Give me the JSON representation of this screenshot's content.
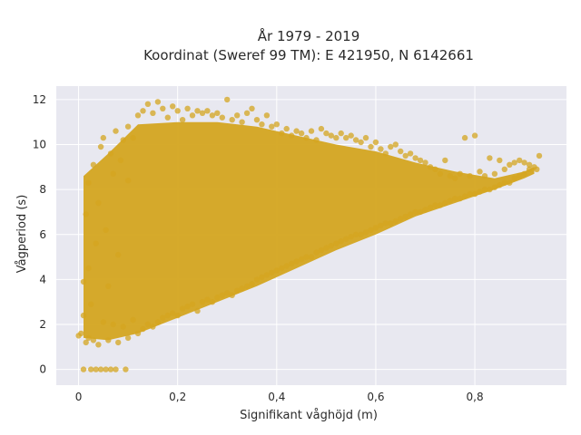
{
  "chart_data": {
    "type": "scatter",
    "title": [
      "År 1979 - 2019",
      "Koordinat (Sweref 99 TM): E 421950, N 6142661"
    ],
    "xlabel": "Signifikant våghöjd (m)",
    "ylabel": "Vågperiod (s)",
    "xlim": [
      -0.045,
      0.985
    ],
    "ylim": [
      -0.7,
      12.6
    ],
    "xticks": [
      0,
      0.2,
      0.4,
      0.6,
      0.8
    ],
    "xtick_labels": [
      "0",
      "0,2",
      "0,4",
      "0,6",
      "0,8"
    ],
    "yticks": [
      0,
      2,
      4,
      6,
      8,
      10,
      12
    ],
    "ytick_labels": [
      "0",
      "2",
      "4",
      "6",
      "8",
      "10",
      "12"
    ],
    "grid": true,
    "marker_color": "#D4A520",
    "plot_background": "#E8E8F0",
    "series": [
      {
        "points": [
          [
            0.0,
            1.5
          ],
          [
            0.005,
            1.6
          ],
          [
            0.01,
            2.4
          ],
          [
            0.01,
            3.9
          ],
          [
            0.01,
            0.0
          ],
          [
            0.015,
            1.2
          ],
          [
            0.015,
            6.9
          ],
          [
            0.02,
            1.4
          ],
          [
            0.02,
            4.5
          ],
          [
            0.02,
            8.3
          ],
          [
            0.025,
            0.0
          ],
          [
            0.025,
            2.9
          ],
          [
            0.03,
            1.3
          ],
          [
            0.03,
            9.1
          ],
          [
            0.035,
            0.0
          ],
          [
            0.035,
            5.6
          ],
          [
            0.04,
            1.1
          ],
          [
            0.04,
            7.4
          ],
          [
            0.045,
            0.0
          ],
          [
            0.045,
            9.9
          ],
          [
            0.05,
            2.1
          ],
          [
            0.05,
            10.3
          ],
          [
            0.055,
            0.0
          ],
          [
            0.055,
            6.2
          ],
          [
            0.06,
            1.3
          ],
          [
            0.06,
            3.7
          ],
          [
            0.065,
            0.0
          ],
          [
            0.065,
            9.6
          ],
          [
            0.07,
            2.0
          ],
          [
            0.07,
            8.7
          ],
          [
            0.075,
            0.0
          ],
          [
            0.075,
            10.6
          ],
          [
            0.08,
            1.2
          ],
          [
            0.08,
            5.1
          ],
          [
            0.085,
            9.3
          ],
          [
            0.09,
            1.9
          ],
          [
            0.09,
            10.2
          ],
          [
            0.095,
            0.0
          ],
          [
            0.1,
            1.4
          ],
          [
            0.1,
            10.8
          ],
          [
            0.1,
            8.4
          ],
          [
            0.11,
            2.2
          ],
          [
            0.11,
            10.3
          ],
          [
            0.12,
            1.6
          ],
          [
            0.12,
            11.3
          ],
          [
            0.13,
            1.8
          ],
          [
            0.13,
            11.5
          ],
          [
            0.14,
            2.0
          ],
          [
            0.14,
            11.8
          ],
          [
            0.15,
            1.9
          ],
          [
            0.15,
            11.4
          ],
          [
            0.16,
            2.1
          ],
          [
            0.16,
            11.9
          ],
          [
            0.17,
            2.3
          ],
          [
            0.17,
            11.6
          ],
          [
            0.18,
            2.4
          ],
          [
            0.18,
            11.2
          ],
          [
            0.19,
            2.5
          ],
          [
            0.19,
            11.7
          ],
          [
            0.2,
            2.4
          ],
          [
            0.2,
            11.5
          ],
          [
            0.21,
            2.7
          ],
          [
            0.21,
            11.1
          ],
          [
            0.22,
            2.8
          ],
          [
            0.22,
            11.6
          ],
          [
            0.23,
            2.9
          ],
          [
            0.23,
            11.3
          ],
          [
            0.24,
            2.6
          ],
          [
            0.24,
            11.5
          ],
          [
            0.25,
            3.0
          ],
          [
            0.25,
            11.4
          ],
          [
            0.26,
            3.1
          ],
          [
            0.26,
            11.5
          ],
          [
            0.27,
            3.0
          ],
          [
            0.27,
            11.3
          ],
          [
            0.28,
            3.2
          ],
          [
            0.28,
            11.4
          ],
          [
            0.29,
            3.3
          ],
          [
            0.29,
            11.2
          ],
          [
            0.3,
            3.4
          ],
          [
            0.3,
            12.0
          ],
          [
            0.31,
            3.3
          ],
          [
            0.31,
            11.1
          ],
          [
            0.32,
            3.5
          ],
          [
            0.32,
            11.3
          ],
          [
            0.33,
            3.6
          ],
          [
            0.33,
            11.0
          ],
          [
            0.34,
            3.7
          ],
          [
            0.34,
            11.4
          ],
          [
            0.35,
            3.8
          ],
          [
            0.35,
            11.6
          ],
          [
            0.36,
            4.0
          ],
          [
            0.36,
            11.1
          ],
          [
            0.37,
            4.1
          ],
          [
            0.37,
            10.9
          ],
          [
            0.38,
            4.2
          ],
          [
            0.38,
            11.3
          ],
          [
            0.39,
            4.3
          ],
          [
            0.39,
            10.8
          ],
          [
            0.4,
            4.4
          ],
          [
            0.4,
            10.9
          ],
          [
            0.41,
            4.5
          ],
          [
            0.41,
            10.5
          ],
          [
            0.42,
            4.6
          ],
          [
            0.42,
            10.7
          ],
          [
            0.43,
            4.7
          ],
          [
            0.43,
            10.4
          ],
          [
            0.44,
            4.8
          ],
          [
            0.44,
            10.6
          ],
          [
            0.45,
            4.9
          ],
          [
            0.45,
            10.5
          ],
          [
            0.46,
            5.0
          ],
          [
            0.46,
            10.3
          ],
          [
            0.47,
            5.0
          ],
          [
            0.47,
            10.6
          ],
          [
            0.48,
            5.2
          ],
          [
            0.48,
            10.2
          ],
          [
            0.49,
            5.3
          ],
          [
            0.49,
            10.7
          ],
          [
            0.5,
            5.4
          ],
          [
            0.5,
            10.5
          ],
          [
            0.51,
            5.5
          ],
          [
            0.51,
            10.4
          ],
          [
            0.52,
            5.6
          ],
          [
            0.52,
            10.3
          ],
          [
            0.53,
            5.7
          ],
          [
            0.53,
            10.5
          ],
          [
            0.54,
            5.8
          ],
          [
            0.54,
            10.3
          ],
          [
            0.55,
            5.9
          ],
          [
            0.55,
            10.4
          ],
          [
            0.56,
            6.0
          ],
          [
            0.56,
            10.2
          ],
          [
            0.57,
            6.0
          ],
          [
            0.57,
            10.1
          ],
          [
            0.58,
            6.1
          ],
          [
            0.58,
            10.3
          ],
          [
            0.59,
            6.2
          ],
          [
            0.59,
            9.9
          ],
          [
            0.6,
            6.3
          ],
          [
            0.6,
            10.1
          ],
          [
            0.61,
            6.4
          ],
          [
            0.61,
            9.8
          ],
          [
            0.62,
            6.5
          ],
          [
            0.62,
            9.6
          ],
          [
            0.63,
            6.5
          ],
          [
            0.63,
            9.9
          ],
          [
            0.64,
            6.6
          ],
          [
            0.64,
            10.0
          ],
          [
            0.65,
            6.7
          ],
          [
            0.65,
            9.7
          ],
          [
            0.66,
            6.8
          ],
          [
            0.66,
            9.5
          ],
          [
            0.67,
            6.9
          ],
          [
            0.67,
            9.6
          ],
          [
            0.68,
            7.0
          ],
          [
            0.68,
            9.4
          ],
          [
            0.69,
            7.0
          ],
          [
            0.69,
            9.3
          ],
          [
            0.7,
            7.1
          ],
          [
            0.7,
            9.2
          ],
          [
            0.71,
            7.2
          ],
          [
            0.71,
            9.0
          ],
          [
            0.72,
            7.3
          ],
          [
            0.72,
            8.9
          ],
          [
            0.73,
            7.3
          ],
          [
            0.73,
            8.7
          ],
          [
            0.74,
            7.4
          ],
          [
            0.74,
            9.3
          ],
          [
            0.75,
            7.5
          ],
          [
            0.75,
            8.6
          ],
          [
            0.76,
            7.6
          ],
          [
            0.76,
            8.5
          ],
          [
            0.77,
            7.6
          ],
          [
            0.77,
            8.7
          ],
          [
            0.78,
            7.7
          ],
          [
            0.78,
            10.3
          ],
          [
            0.79,
            7.8
          ],
          [
            0.79,
            8.6
          ],
          [
            0.8,
            7.8
          ],
          [
            0.8,
            10.4
          ],
          [
            0.81,
            7.9
          ],
          [
            0.81,
            8.8
          ],
          [
            0.82,
            8.0
          ],
          [
            0.82,
            8.6
          ],
          [
            0.83,
            8.0
          ],
          [
            0.83,
            9.4
          ],
          [
            0.84,
            8.1
          ],
          [
            0.84,
            8.7
          ],
          [
            0.85,
            8.2
          ],
          [
            0.85,
            9.3
          ],
          [
            0.86,
            8.3
          ],
          [
            0.86,
            8.9
          ],
          [
            0.87,
            8.3
          ],
          [
            0.87,
            9.1
          ],
          [
            0.88,
            8.5
          ],
          [
            0.88,
            9.2
          ],
          [
            0.89,
            8.6
          ],
          [
            0.89,
            9.3
          ],
          [
            0.9,
            8.7
          ],
          [
            0.9,
            9.2
          ],
          [
            0.91,
            8.9
          ],
          [
            0.91,
            9.1
          ],
          [
            0.92,
            9.0
          ],
          [
            0.93,
            9.5
          ],
          [
            0.925,
            8.9
          ]
        ]
      }
    ],
    "density_bands": [
      {
        "x": [
          0.01,
          0.06,
          0.12,
          0.2,
          0.28,
          0.36,
          0.44,
          0.52,
          0.6,
          0.68,
          0.76,
          0.84,
          0.9,
          0.92
        ],
        "lower": [
          1.4,
          1.3,
          1.6,
          2.3,
          3.0,
          3.7,
          4.5,
          5.3,
          6.0,
          6.8,
          7.4,
          8.0,
          8.5,
          8.7
        ],
        "upper": [
          8.6,
          9.6,
          10.9,
          11.0,
          11.0,
          10.8,
          10.4,
          10.0,
          9.7,
          9.2,
          8.8,
          8.5,
          8.8,
          9.0
        ]
      }
    ]
  }
}
